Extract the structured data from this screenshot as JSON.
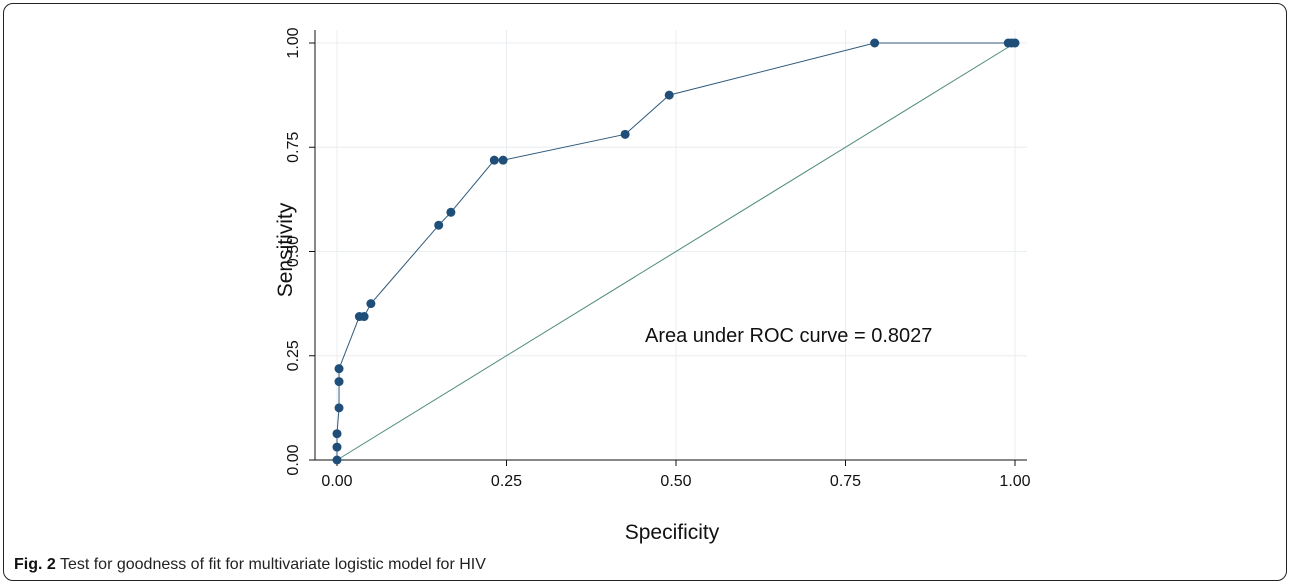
{
  "chart_data": {
    "type": "line",
    "xlabel": "Specificity",
    "ylabel": "Sensitivity",
    "xlim": [
      0,
      1
    ],
    "ylim": [
      0,
      1
    ],
    "x_ticks": [
      "0.00",
      "0.25",
      "0.50",
      "0.75",
      "1.00"
    ],
    "y_ticks": [
      "0.00",
      "0.25",
      "0.50",
      "0.75",
      "1.00"
    ],
    "grid": true,
    "annotation": "Area under ROC  curve = 0.8027",
    "series": [
      {
        "points": [
          [
            0.0,
            0.0
          ],
          [
            0.0,
            0.031
          ],
          [
            0.0,
            0.063
          ],
          [
            0.003,
            0.125
          ],
          [
            0.003,
            0.188
          ],
          [
            0.003,
            0.219
          ],
          [
            0.033,
            0.344
          ],
          [
            0.04,
            0.344
          ],
          [
            0.05,
            0.375
          ],
          [
            0.15,
            0.563
          ],
          [
            0.168,
            0.594
          ],
          [
            0.232,
            0.719
          ],
          [
            0.245,
            0.719
          ],
          [
            0.425,
            0.781
          ],
          [
            0.49,
            0.875
          ],
          [
            0.793,
            1.0
          ],
          [
            0.99,
            1.0
          ],
          [
            0.995,
            1.0
          ],
          [
            1.0,
            1.0
          ]
        ]
      },
      {
        "points": [
          [
            0.0,
            0.0
          ],
          [
            1.0,
            1.0
          ]
        ]
      }
    ],
    "colors": {
      "markers": "#1f4e79",
      "curve_line": "#2f5a7c",
      "reference_line": "#4f8a7c",
      "grid": "#e9eef0"
    }
  },
  "caption": {
    "label": "Fig. 2",
    "text": " Test for goodness of fit for multivariate logistic model for HIV"
  }
}
